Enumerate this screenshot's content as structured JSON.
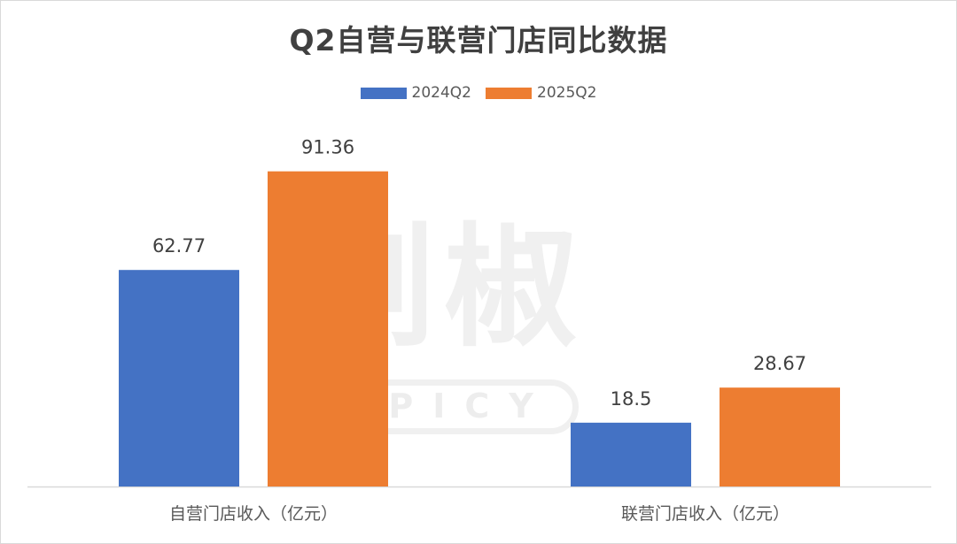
{
  "chart_data": {
    "type": "bar",
    "title": "Q2自营与联营门店同比数据",
    "categories": [
      "自营门店收入（亿元）",
      "联营门店收入（亿元）"
    ],
    "series": [
      {
        "name": "2024Q2",
        "color": "#4472C4",
        "values": [
          62.77,
          18.5
        ],
        "labels": [
          "62.77",
          "18.5"
        ]
      },
      {
        "name": "2025Q2",
        "color": "#ED7D31",
        "values": [
          91.36,
          28.67
        ],
        "labels": [
          "91.36",
          "28.67"
        ]
      }
    ],
    "ylim": [
      0,
      100
    ],
    "grid": false,
    "legend_position": "top",
    "xlabel": "",
    "ylabel": ""
  },
  "watermark": {
    "chars": "剁椒",
    "sub": "SPICY"
  }
}
